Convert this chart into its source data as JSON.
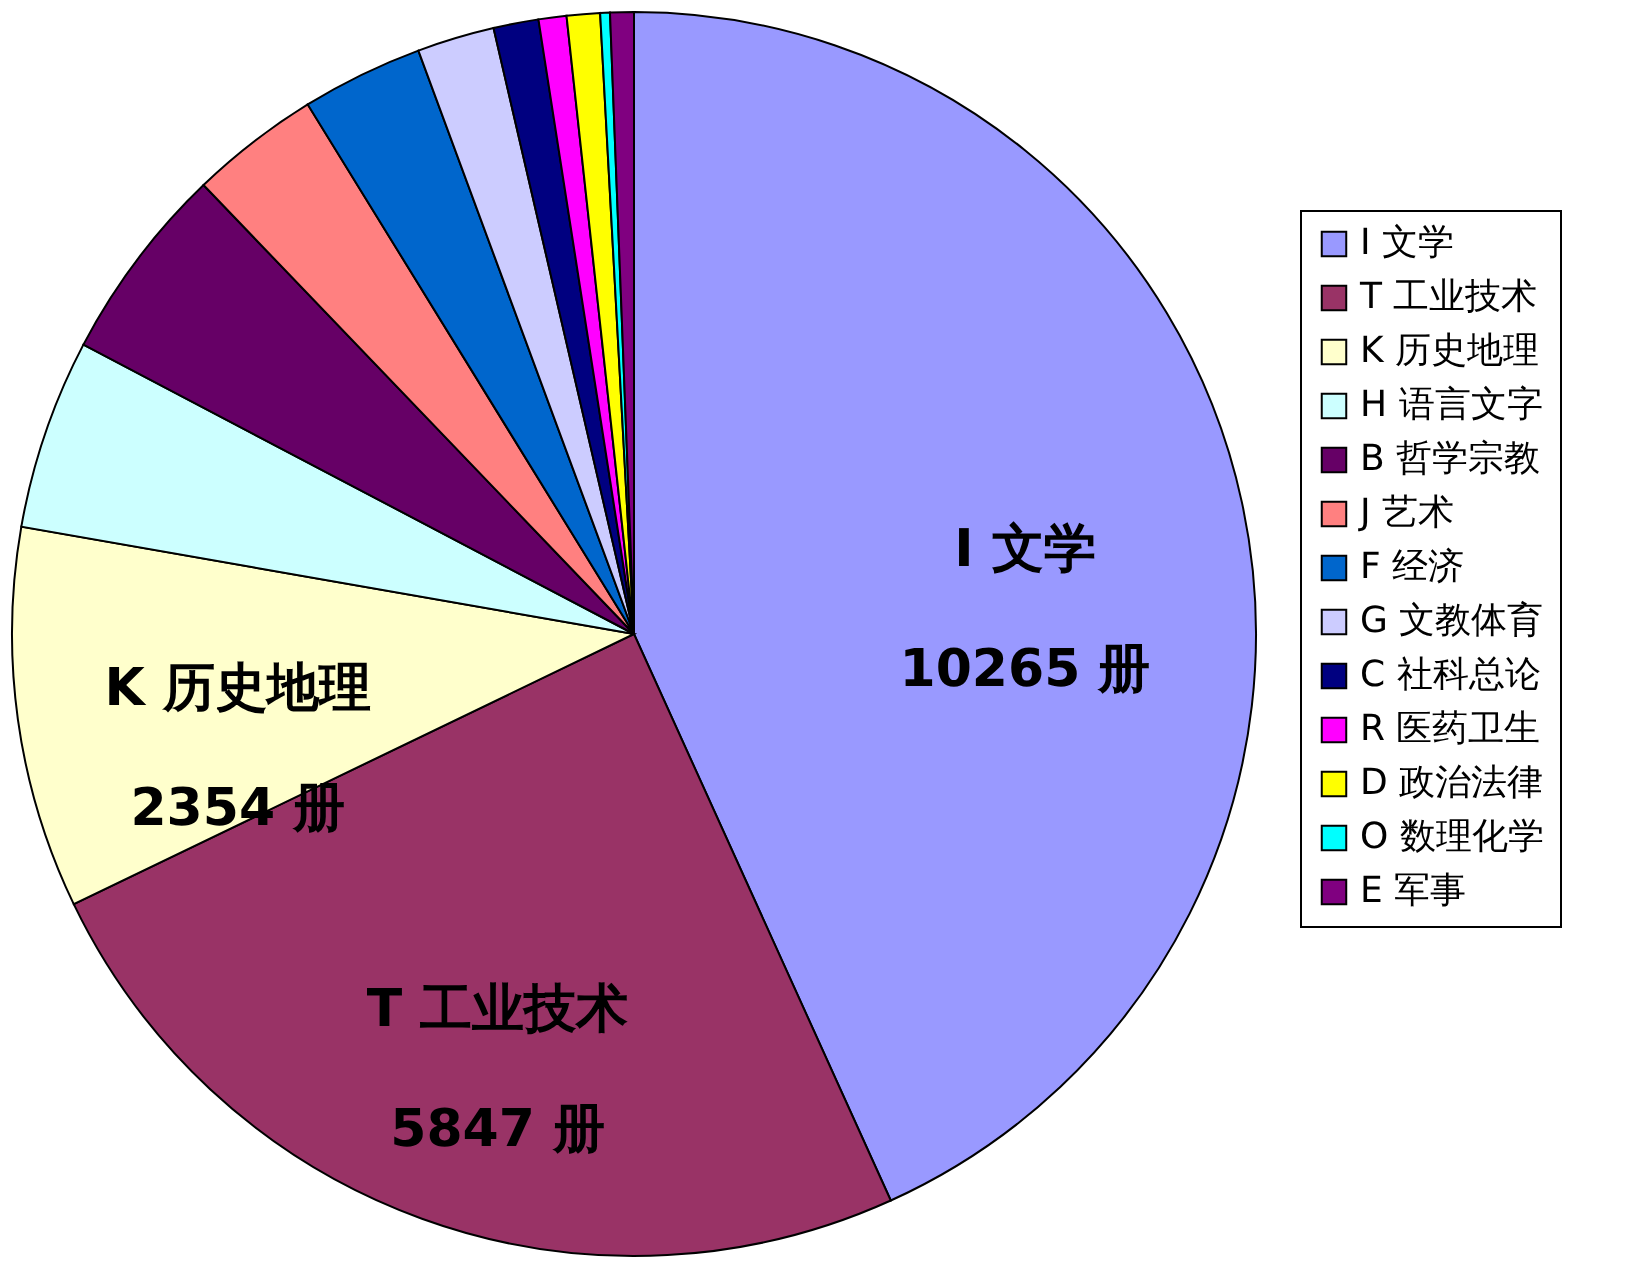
{
  "chart_data": {
    "type": "pie",
    "categories": [
      "I 文学",
      "T 工业技术",
      "K 历史地理",
      "H 语言文字",
      "B 哲学宗教",
      "J 艺术",
      "F 经济",
      "G 文教体育",
      "C 社科总论",
      "R 医药卫生",
      "D 政治法律",
      "O 数理化学",
      "E 军事"
    ],
    "values": [
      10265,
      5847,
      2354,
      1173,
      1219,
      802,
      749,
      477,
      278,
      172,
      205,
      60,
      146
    ],
    "colors": [
      "#9999ff",
      "#993366",
      "#ffffcc",
      "#ccffff",
      "#660066",
      "#ff8080",
      "#0066cc",
      "#ccccff",
      "#000080",
      "#ff00ff",
      "#ffff00",
      "#00ffff",
      "#800080"
    ],
    "value_labels": [
      "10265 册",
      "5847 册",
      "2354 册",
      null,
      null,
      null,
      null,
      null,
      null,
      null,
      null,
      null,
      null
    ],
    "legend": "right"
  }
}
